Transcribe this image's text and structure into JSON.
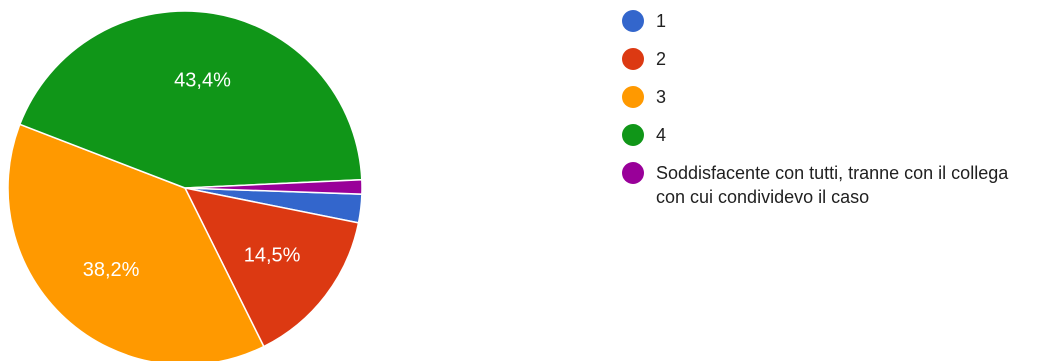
{
  "chart_data": {
    "type": "pie",
    "categories": [
      "1",
      "2",
      "3",
      "4",
      "Soddisfacente con tutti, tranne con il collega con cui condividevo il caso"
    ],
    "values": [
      2.6,
      14.5,
      38.2,
      43.4,
      1.3
    ],
    "data_labels": [
      "",
      "14,5%",
      "38,2%",
      "43,4%",
      ""
    ],
    "colors": [
      "#3366cc",
      "#dc3912",
      "#ff9900",
      "#109618",
      "#990099"
    ],
    "start_angle_deg": 92,
    "legend": "right"
  }
}
